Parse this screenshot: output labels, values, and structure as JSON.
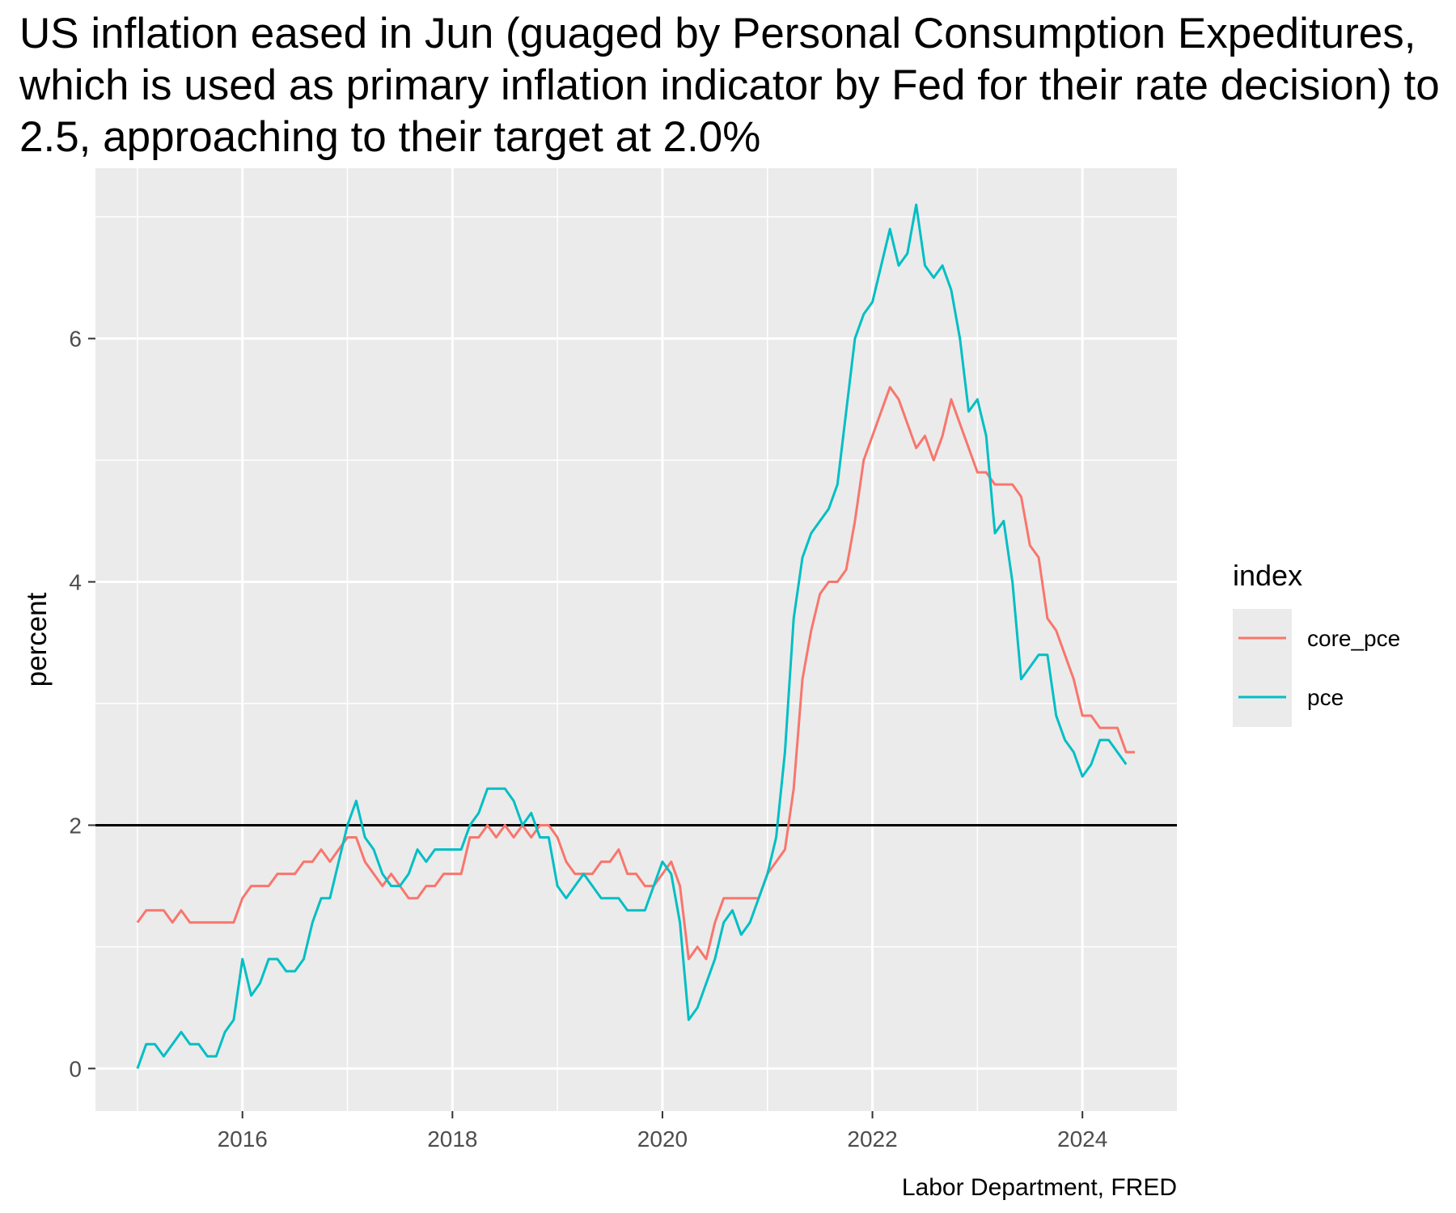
{
  "chart_data": {
    "type": "line",
    "title": "US inflation eased in Jun (guaged by Personal Consumption Expeditures, which is used as primary inflation indicator by Fed for their rate decision) to 2.5, approaching to their target at 2.0%",
    "xlabel": "",
    "ylabel": "percent",
    "caption": "Labor Department, FRED",
    "x_start": "2015-01",
    "x_ticks": [
      2016,
      2018,
      2020,
      2022,
      2024
    ],
    "y_ticks": [
      0,
      2,
      4,
      6
    ],
    "xlim": [
      2014.6,
      2024.9
    ],
    "ylim": [
      -0.35,
      7.4
    ],
    "grid": true,
    "legend": {
      "title": "index",
      "position": "right"
    },
    "reference_line": {
      "y": 2.0,
      "color": "#000000"
    },
    "series": [
      {
        "name": "core_pce",
        "color": "#F8766D",
        "values": [
          1.2,
          1.3,
          1.3,
          1.3,
          1.2,
          1.3,
          1.2,
          1.2,
          1.2,
          1.2,
          1.2,
          1.2,
          1.4,
          1.5,
          1.5,
          1.5,
          1.6,
          1.6,
          1.6,
          1.7,
          1.7,
          1.8,
          1.7,
          1.8,
          1.9,
          1.9,
          1.7,
          1.6,
          1.5,
          1.6,
          1.5,
          1.4,
          1.4,
          1.5,
          1.5,
          1.6,
          1.6,
          1.6,
          1.9,
          1.9,
          2.0,
          1.9,
          2.0,
          1.9,
          2.0,
          1.9,
          2.0,
          2.0,
          1.9,
          1.7,
          1.6,
          1.6,
          1.6,
          1.7,
          1.7,
          1.8,
          1.6,
          1.6,
          1.5,
          1.5,
          1.6,
          1.7,
          1.5,
          0.9,
          1.0,
          0.9,
          1.2,
          1.4,
          1.4,
          1.4,
          1.4,
          1.4,
          1.6,
          1.7,
          1.8,
          2.3,
          3.2,
          3.6,
          3.9,
          4.0,
          4.0,
          4.1,
          4.5,
          5.0,
          5.2,
          5.4,
          5.6,
          5.5,
          5.3,
          5.1,
          5.2,
          5.0,
          5.2,
          5.5,
          5.3,
          5.1,
          4.9,
          4.9,
          4.8,
          4.8,
          4.8,
          4.7,
          4.3,
          4.2,
          3.7,
          3.6,
          3.4,
          3.2,
          2.9,
          2.9,
          2.8,
          2.8,
          2.8,
          2.6,
          2.6
        ]
      },
      {
        "name": "pce",
        "color": "#00BFC4",
        "values": [
          0.0,
          0.2,
          0.2,
          0.1,
          0.2,
          0.3,
          0.2,
          0.2,
          0.1,
          0.1,
          0.3,
          0.4,
          0.9,
          0.6,
          0.7,
          0.9,
          0.9,
          0.8,
          0.8,
          0.9,
          1.2,
          1.4,
          1.4,
          1.7,
          2.0,
          2.2,
          1.9,
          1.8,
          1.6,
          1.5,
          1.5,
          1.6,
          1.8,
          1.7,
          1.8,
          1.8,
          1.8,
          1.8,
          2.0,
          2.1,
          2.3,
          2.3,
          2.3,
          2.2,
          2.0,
          2.1,
          1.9,
          1.9,
          1.5,
          1.4,
          1.5,
          1.6,
          1.5,
          1.4,
          1.4,
          1.4,
          1.3,
          1.3,
          1.3,
          1.5,
          1.7,
          1.6,
          1.2,
          0.4,
          0.5,
          0.7,
          0.9,
          1.2,
          1.3,
          1.1,
          1.2,
          1.4,
          1.6,
          1.9,
          2.6,
          3.7,
          4.2,
          4.4,
          4.5,
          4.6,
          4.8,
          5.4,
          6.0,
          6.2,
          6.3,
          6.6,
          6.9,
          6.6,
          6.7,
          7.1,
          6.6,
          6.5,
          6.6,
          6.4,
          6.0,
          5.4,
          5.5,
          5.2,
          4.4,
          4.5,
          4.0,
          3.2,
          3.3,
          3.4,
          3.4,
          2.9,
          2.7,
          2.6,
          2.4,
          2.5,
          2.7,
          2.7,
          2.6,
          2.5
        ]
      }
    ]
  }
}
